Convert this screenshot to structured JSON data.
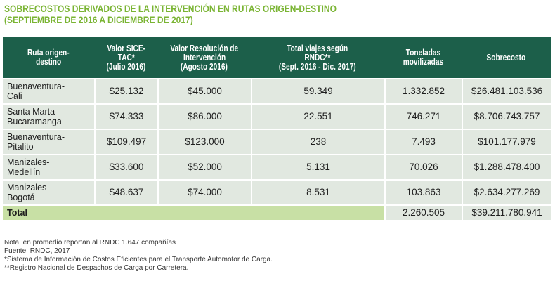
{
  "title_line1": "SOBRECOSTOS DERIVADOS DE LA INTERVENCIÓN EN RUTAS ORIGEN-DESTINO",
  "title_line2": "(SEPTIEMBRE DE 2016 A DICIEMBRE DE 2017)",
  "headers": [
    [
      "Ruta origen-",
      "destino"
    ],
    [
      "Valor SICE-",
      "TAC*",
      "(Julio 2016)"
    ],
    [
      "Valor Resolución de",
      "Intervención",
      "(Agosto 2016)"
    ],
    [
      "Total viajes según",
      "RNDC**",
      "(Sept. 2016 - Dic. 2017)"
    ],
    [
      "Toneladas",
      "movilizadas"
    ],
    [
      "Sobrecosto"
    ]
  ],
  "rows": [
    {
      "route": [
        "Buenaventura-",
        "Cali"
      ],
      "sicetac": "$25.132",
      "resolucion": "$45.000",
      "viajes": "59.349",
      "toneladas": "1.332.852",
      "sobrecosto": "$26.481.103.536"
    },
    {
      "route": [
        "Santa Marta-",
        "Bucaramanga"
      ],
      "sicetac": "$74.333",
      "resolucion": "$86.000",
      "viajes": "22.551",
      "toneladas": "746.271",
      "sobrecosto": "$8.706.743.757"
    },
    {
      "route": [
        "Buenaventura-",
        "Pitalito"
      ],
      "sicetac": "$109.497",
      "resolucion": "$123.000",
      "viajes": "238",
      "toneladas": "7.493",
      "sobrecosto": "$101.177.979"
    },
    {
      "route": [
        "Manizales-",
        "Medellín"
      ],
      "sicetac": "$33.600",
      "resolucion": "$52.000",
      "viajes": "5.131",
      "toneladas": "70.026",
      "sobrecosto": "$1.288.478.400"
    },
    {
      "route": [
        "Manizales-",
        "Bogotá"
      ],
      "sicetac": "$48.637",
      "resolucion": "$74.000",
      "viajes": "8.531",
      "toneladas": "103.863",
      "sobrecosto": "$2.634.277.269"
    }
  ],
  "total": {
    "label": "Total",
    "toneladas": "2.260.505",
    "sobrecosto": "$39.211.780.941"
  },
  "notes": [
    "Nota: en promedio reportan al RNDC 1.647 compañías",
    "Fuente: RNDC, 2017",
    "*Sistema de Información de Costos Eficientes para el Transporte Automotor de Carga.",
    "**Registro Nacional de Despachos de Carga por Carretera."
  ],
  "colors": {
    "title": "#7ab433",
    "header_bg": "#1c5f4a",
    "cell_bg": "#e1e8e0",
    "total_bg": "#c8e0a5"
  }
}
